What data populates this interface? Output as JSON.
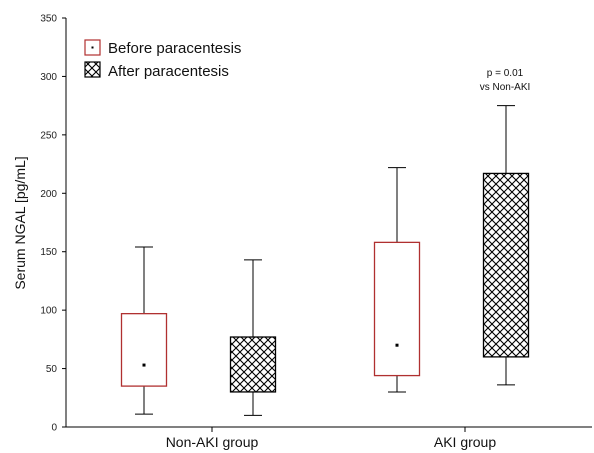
{
  "chart_data": {
    "type": "box",
    "ylabel": "Serum NGAL [pg/mL]",
    "ylim": [
      0,
      350
    ],
    "yticks": [
      "0",
      "50",
      "100",
      "150",
      "200",
      "250",
      "300",
      "350"
    ],
    "categories": [
      "Non-AKI group",
      "AKI group"
    ],
    "series": [
      {
        "name": "Before paracentesis",
        "pattern": "dot",
        "edge_color": "#b03030",
        "boxes": [
          {
            "category": "Non-AKI group",
            "whisker_low": 11,
            "q1": 35,
            "median": 53,
            "q3": 97,
            "whisker_high": 154
          },
          {
            "category": "AKI group",
            "whisker_low": 30,
            "q1": 44,
            "median": 70,
            "q3": 158,
            "whisker_high": 222
          }
        ]
      },
      {
        "name": "After paracentesis",
        "pattern": "crosshatch",
        "edge_color": "#000000",
        "boxes": [
          {
            "category": "Non-AKI group",
            "whisker_low": 10,
            "q1": 30,
            "median": 52,
            "q3": 77,
            "whisker_high": 143
          },
          {
            "category": "AKI group",
            "whisker_low": 36,
            "q1": 60,
            "median": 130,
            "q3": 217,
            "whisker_high": 275
          }
        ]
      }
    ],
    "annotation": {
      "lines": [
        "p = 0.01",
        "vs Non-AKI"
      ],
      "category": "AKI group",
      "series": "After paracentesis"
    },
    "legend_position": "top-left",
    "grid": false
  }
}
